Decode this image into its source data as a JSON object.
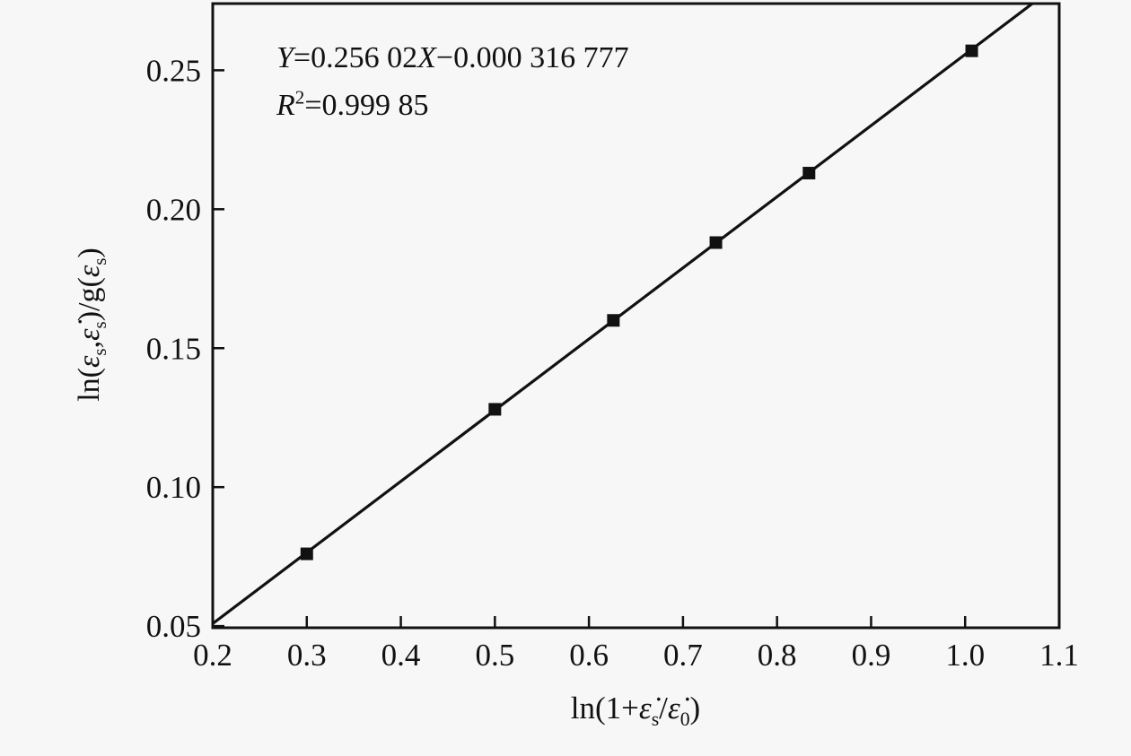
{
  "figure": {
    "background_color": "#f7f7f7",
    "ink_color": "#111111"
  },
  "annotation": {
    "var_y": "Y",
    "eq_mid": "=0.256 02",
    "var_x": "X",
    "eq_tail": "−0.000 316 777",
    "r_var": "R",
    "r_exp": "2",
    "r_tail": "=0.999 85"
  },
  "x_axis_label": {
    "prefix": "ln(1+",
    "eps_dot_1": "ε̇",
    "sub_1": "s",
    "slash": "/",
    "eps_dot_2": "ε̇",
    "sub_2": "0",
    "suffix": ")"
  },
  "y_axis_label": {
    "prefix": "ln(",
    "eps_1": "ε",
    "sub_1": "s",
    "comma": ",",
    "eps_dot": "ε̇",
    "sub_2": "s",
    "mid": ")/g(",
    "eps_2": "ε",
    "sub_3": "s",
    "suffix": ")"
  },
  "chart_data": {
    "type": "scatter",
    "title": "",
    "xlabel": "ln(1+ε̇s/ε̇0)",
    "ylabel": "ln(εs,ε̇s)/g(εs)",
    "x": [
      0.3,
      0.5,
      0.626,
      0.735,
      0.834,
      1.007
    ],
    "y": [
      0.076,
      0.128,
      0.16,
      0.188,
      0.213,
      0.257
    ],
    "marker": "filled-square",
    "marker_color": "#111111",
    "line_color": "#111111",
    "grid": false,
    "legend": false,
    "fit_line": {
      "slope": 0.25602,
      "intercept": -0.000316777,
      "equation": "Y=0.256 02X−0.000 316 777",
      "r_squared": "R²=0.999 85"
    },
    "xlim": [
      0.2,
      1.1
    ],
    "ylim": [
      0.0494,
      0.274
    ],
    "x_ticks": {
      "values": [
        0.2,
        0.3,
        0.4,
        0.5,
        0.6,
        0.7,
        0.8,
        0.9,
        1.0,
        1.1
      ],
      "labels": [
        "0.2",
        "0.3",
        "0.4",
        "0.5",
        "0.6",
        "0.7",
        "0.8",
        "0.9",
        "1.0",
        "1.1"
      ]
    },
    "y_ticks": {
      "values": [
        0.05,
        0.1,
        0.15,
        0.2,
        0.25
      ],
      "labels": [
        "0.05",
        "0.10",
        "0.15",
        "0.20",
        "0.25"
      ]
    }
  }
}
